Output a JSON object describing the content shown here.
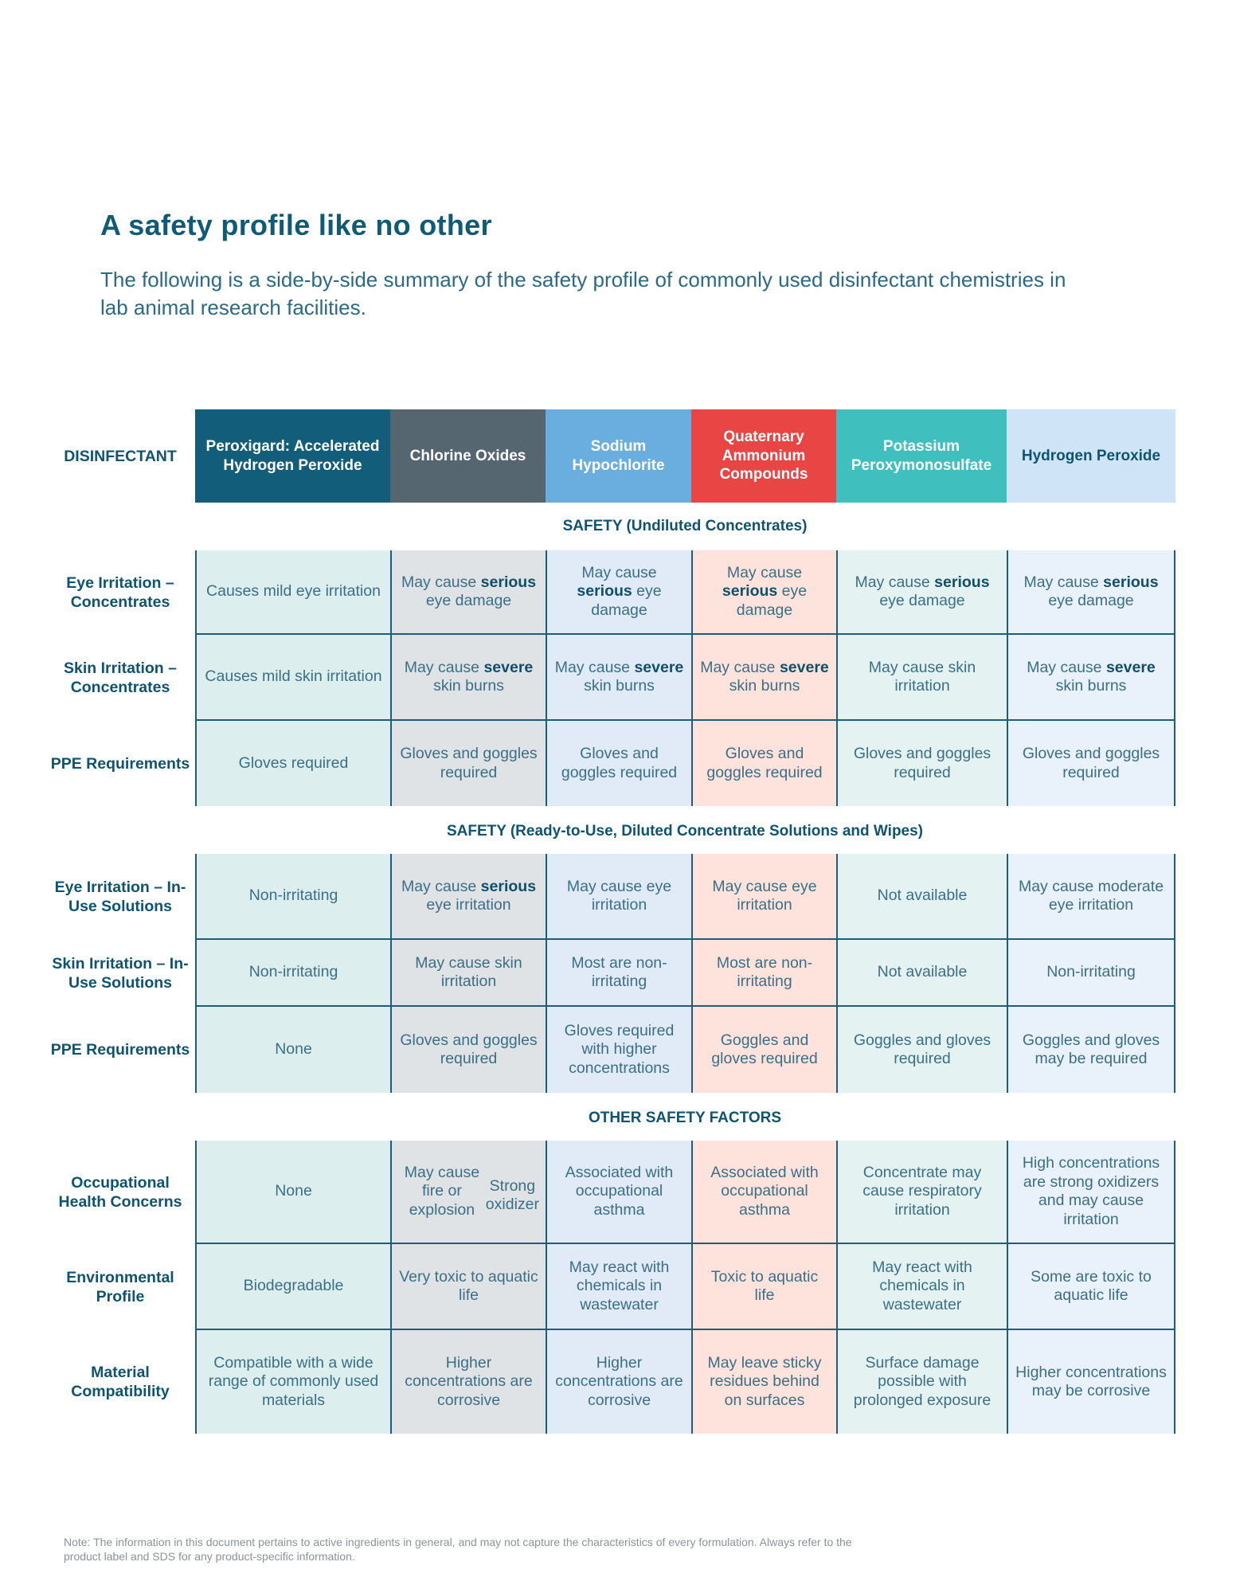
{
  "page": {
    "title": "A safety profile like no other",
    "subtitle": "The following is a side-by-side summary of the safety profile of commonly used disinfectant chemistries in lab animal research facilities.",
    "note": "Note: The information in this document pertains to active ingredients in general, and may not capture the characteristics of every formulation. Always refer to the product label and SDS for any product-specific information."
  },
  "table": {
    "header_label": "DISINFECTANT",
    "columns": [
      {
        "name": "Peroxigard: Accelerated Hydrogen Peroxide",
        "color": "#115d7a"
      },
      {
        "name": "Chlorine Oxides",
        "color": "#566670"
      },
      {
        "name": "Sodium Hypochlorite",
        "color": "#6aaee0"
      },
      {
        "name": "Quaternary Ammonium Compounds",
        "color": "#e94545"
      },
      {
        "name": "Potassium Peroxymonosulfate",
        "color": "#3fbfbd"
      },
      {
        "name": "Hydrogen Peroxide",
        "color": "#cfe5f7"
      }
    ],
    "sections": [
      {
        "title": "SAFETY (Undiluted Concentrates)",
        "rows": [
          {
            "label": "Eye Irritation – Concentrates",
            "cells": [
              "Causes mild eye irritation",
              "May cause <b>serious</b> eye damage",
              "May cause <b>serious</b> eye damage",
              "May cause <b>serious</b> eye damage",
              "May cause <b>serious</b> eye damage",
              "May cause <b>serious</b> eye damage"
            ]
          },
          {
            "label": "Skin Irritation – Concentrates",
            "cells": [
              "Causes mild skin irritation",
              "May cause <b>severe</b> skin burns",
              "May cause <b>severe</b> skin burns",
              "May cause <b>severe</b> skin burns",
              "May cause skin irritation",
              "May cause <b>severe</b> skin burns"
            ]
          },
          {
            "label": "PPE Requirements",
            "cells": [
              "Gloves required",
              "Gloves and goggles required",
              "Gloves and goggles required",
              "Gloves and goggles required",
              "Gloves and goggles required",
              "Gloves and goggles required"
            ]
          }
        ]
      },
      {
        "title": "SAFETY (Ready-to-Use, Diluted Concentrate Solutions and Wipes)",
        "rows": [
          {
            "label": "Eye Irritation – In-Use Solutions",
            "cells": [
              "Non-irritating",
              "May cause <b>serious</b> eye irritation",
              "May cause eye irritation",
              "May cause eye irritation",
              "Not available",
              "May cause moderate eye irritation"
            ]
          },
          {
            "label": "Skin Irritation – In-Use Solutions",
            "cells": [
              "Non-irritating",
              "May cause skin irritation",
              "Most are non-irritating",
              "Most are non-irritating",
              "Not available",
              "Non-irritating"
            ]
          },
          {
            "label": "PPE Requirements",
            "cells": [
              "None",
              "Gloves and goggles required",
              "Gloves required with higher concentrations",
              "Goggles and gloves required",
              "Goggles and gloves required",
              "Goggles and gloves may be required"
            ]
          }
        ]
      },
      {
        "title": "OTHER SAFETY FACTORS",
        "rows": [
          {
            "label": "Occupational Health Concerns",
            "cells": [
              "None",
              "May cause fire or explosion|Strong oxidizer",
              "Associated with occupational asthma",
              "Associated with occupational asthma",
              "Concentrate may cause respiratory irritation",
              "High concentrations are strong oxidizers and may cause irritation"
            ]
          },
          {
            "label": "Environmental Profile",
            "cells": [
              "Biodegradable",
              "Very toxic to aquatic life",
              "May react with chemicals in wastewater",
              "Toxic to aquatic life",
              "May react with chemicals in wastewater",
              "Some are toxic to aquatic life"
            ]
          },
          {
            "label": "Material Compatibility",
            "cells": [
              "Compatible with a wide range of commonly used materials",
              "Higher concentrations are corrosive",
              "Higher concentrations are corrosive",
              "May leave sticky residues behind on surfaces",
              "Surface damage possible with prolonged exposure",
              "Higher concentrations may be corrosive"
            ]
          }
        ]
      }
    ]
  }
}
